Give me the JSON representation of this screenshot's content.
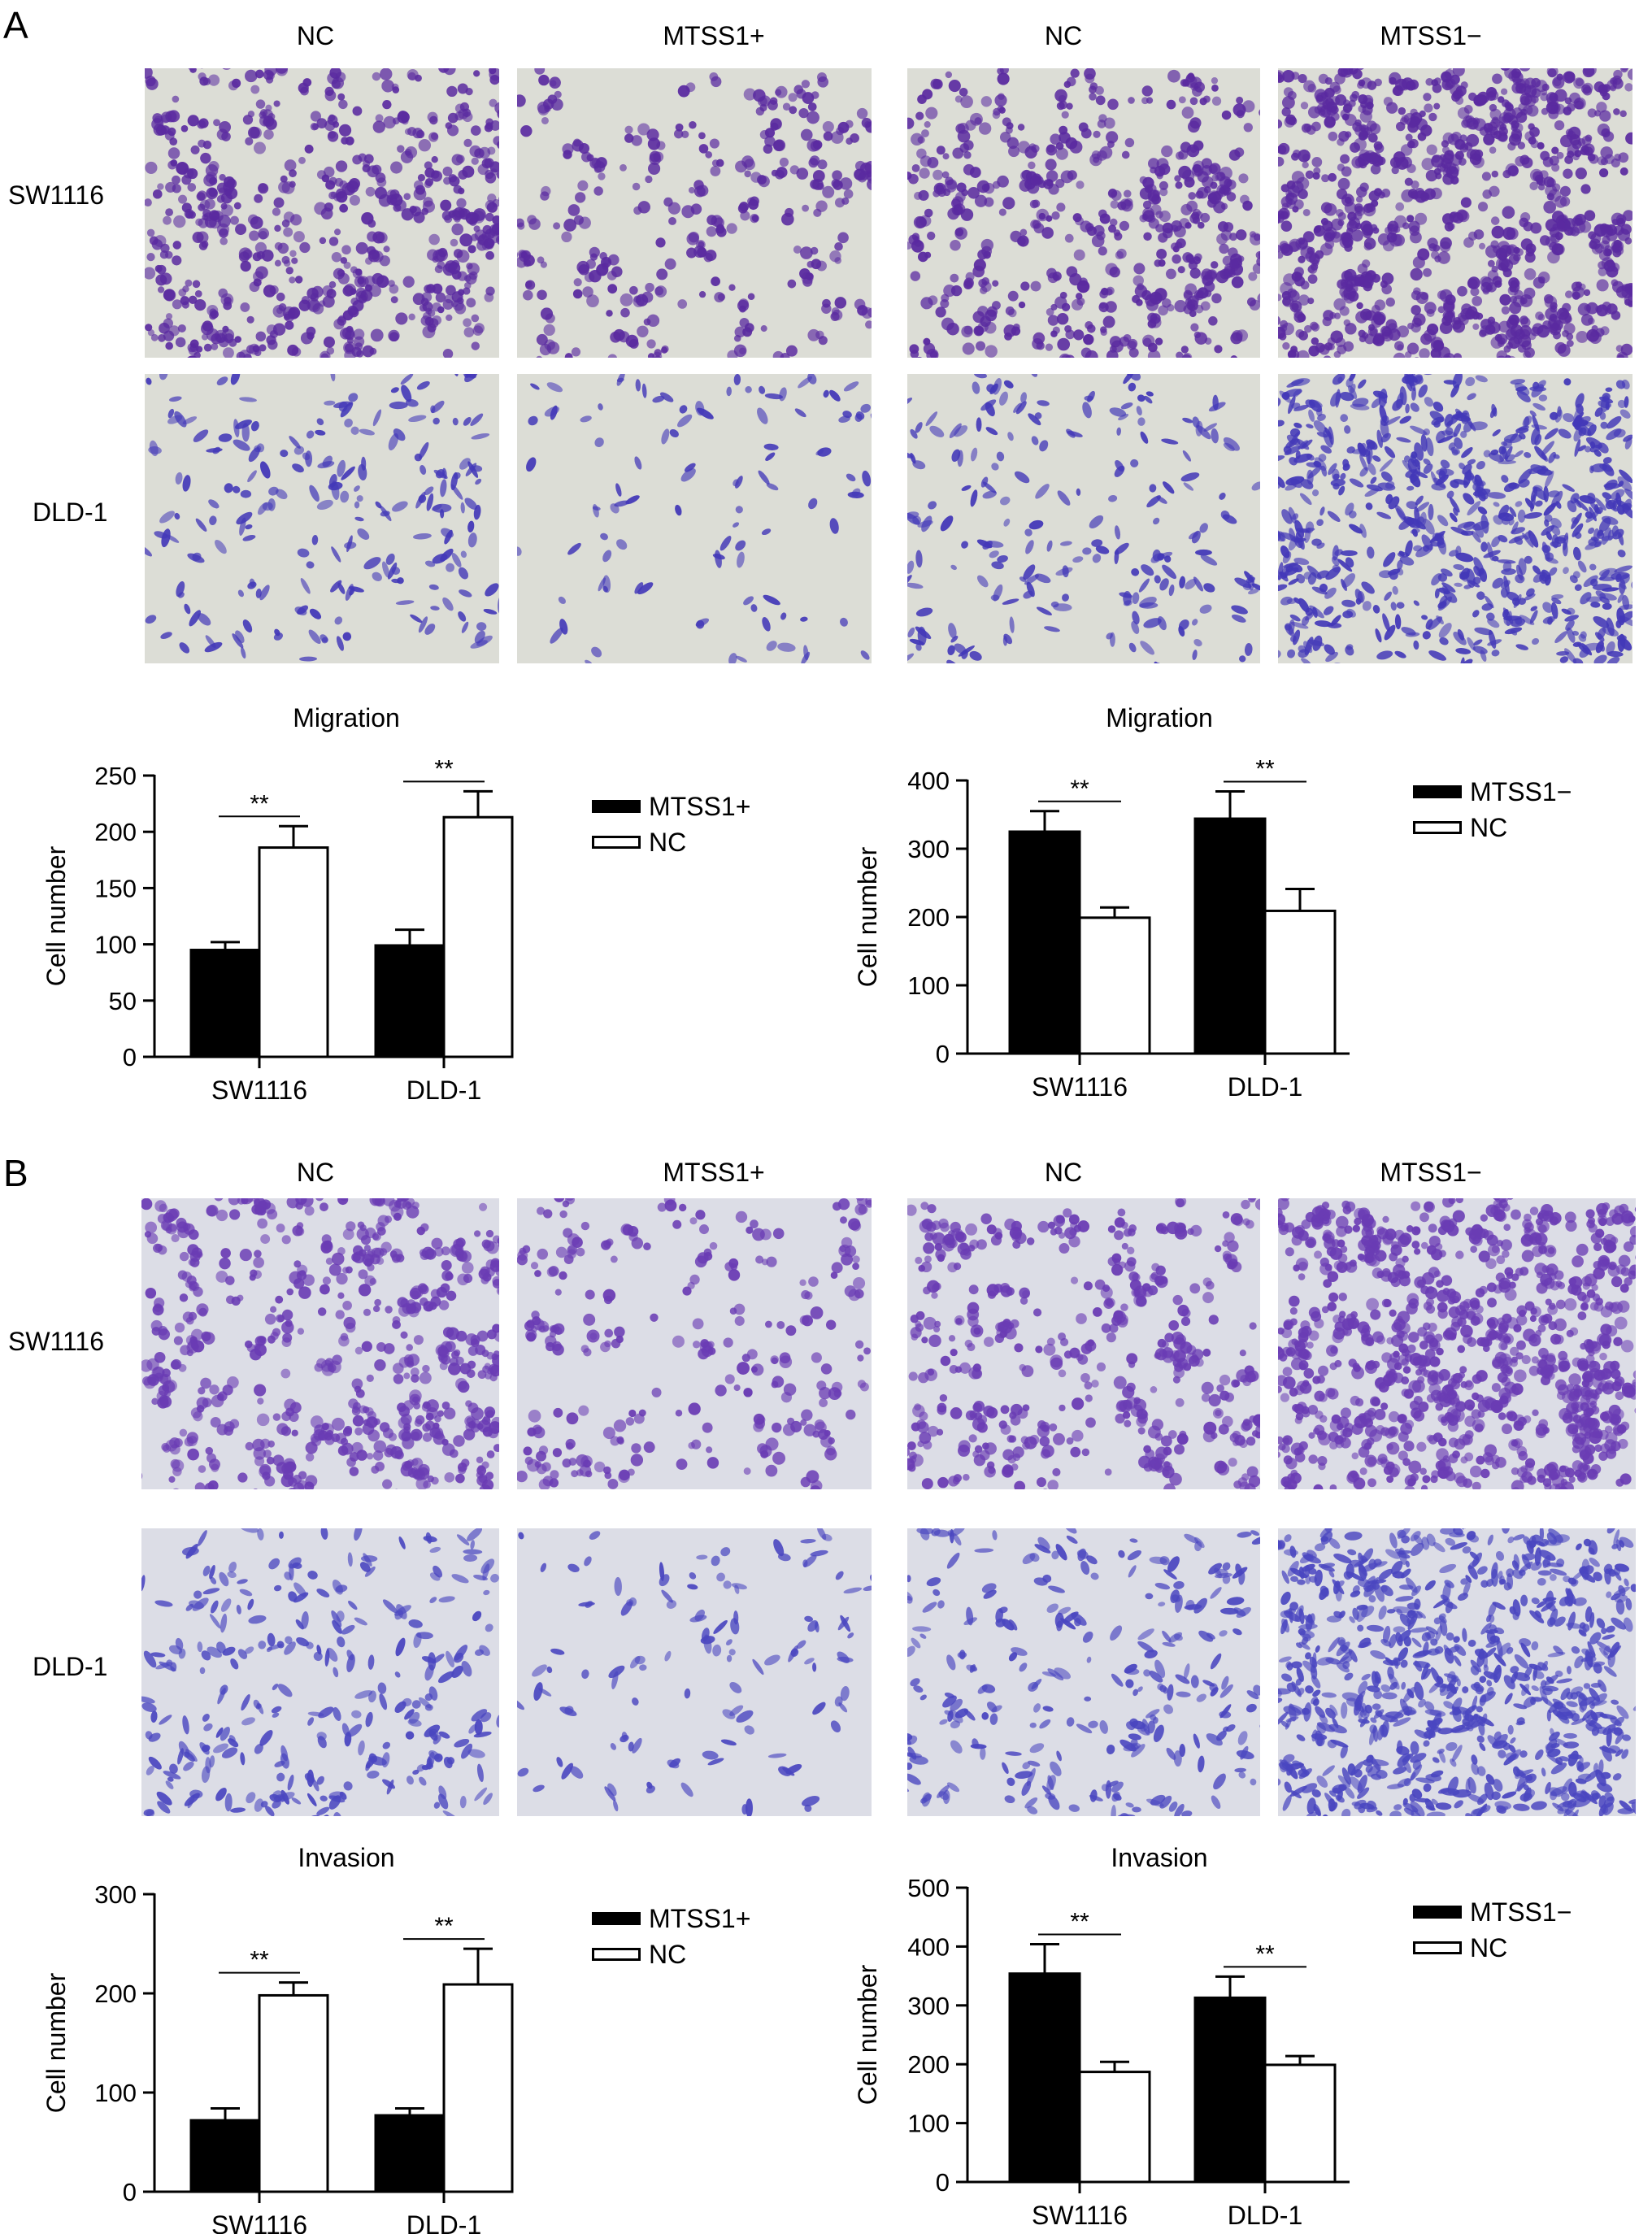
{
  "panels": [
    {
      "letter": "A",
      "columns": [
        "NC",
        "MTSS1+",
        "NC",
        "MTSS1−"
      ],
      "rows": [
        "SW1116",
        "DLD-1"
      ],
      "colors": {
        "sw1116_stain": "#5a2aa0",
        "dld1_stain": "#4338b8",
        "background": "#dcddd6"
      }
    },
    {
      "letter": "B",
      "columns": [
        "NC",
        "MTSS1+",
        "NC",
        "MTSS1−"
      ],
      "rows": [
        "SW1116",
        "DLD-1"
      ],
      "colors": {
        "sw1116_stain": "#6a3cb4",
        "dld1_stain": "#4a46c0",
        "background": "#dcdde6"
      }
    }
  ],
  "chart_data": [
    {
      "type": "bar",
      "title": "Migration",
      "ylabel": "Cell number",
      "categories": [
        "SW1116",
        "DLD-1"
      ],
      "ylim": [
        0,
        250
      ],
      "yticks": [
        0,
        50,
        100,
        150,
        200,
        250
      ],
      "series": [
        {
          "name": "MTSS1+",
          "fill": "#000000",
          "values": [
            95,
            99
          ],
          "errors": [
            7,
            14
          ]
        },
        {
          "name": "NC",
          "fill": "#ffffff",
          "values": [
            186,
            213
          ],
          "errors": [
            19,
            23
          ]
        }
      ],
      "significance": [
        "**",
        "**"
      ],
      "legend_position": "right"
    },
    {
      "type": "bar",
      "title": "Migration",
      "ylabel": "Cell number",
      "categories": [
        "SW1116",
        "DLD-1"
      ],
      "ylim": [
        0,
        400
      ],
      "yticks": [
        0,
        100,
        200,
        300,
        400
      ],
      "series": [
        {
          "name": "MTSS1−",
          "fill": "#000000",
          "values": [
            325,
            344
          ],
          "errors": [
            30,
            40
          ]
        },
        {
          "name": "NC",
          "fill": "#ffffff",
          "values": [
            199,
            209
          ],
          "errors": [
            15,
            32
          ]
        }
      ],
      "significance": [
        "**",
        "**"
      ],
      "legend_position": "right"
    },
    {
      "type": "bar",
      "title": "Invasion",
      "ylabel": "Cell number",
      "categories": [
        "SW1116",
        "DLD-1"
      ],
      "ylim": [
        0,
        300
      ],
      "yticks": [
        0,
        100,
        200,
        300
      ],
      "series": [
        {
          "name": "MTSS1+",
          "fill": "#000000",
          "values": [
            72,
            77
          ],
          "errors": [
            12,
            7
          ]
        },
        {
          "name": "NC",
          "fill": "#ffffff",
          "values": [
            198,
            209
          ],
          "errors": [
            13,
            36
          ]
        }
      ],
      "significance": [
        "**",
        "**"
      ],
      "legend_position": "right"
    },
    {
      "type": "bar",
      "title": "Invasion",
      "ylabel": "Cell number",
      "categories": [
        "SW1116",
        "DLD-1"
      ],
      "ylim": [
        0,
        500
      ],
      "yticks": [
        0,
        100,
        200,
        300,
        400,
        500
      ],
      "series": [
        {
          "name": "MTSS1−",
          "fill": "#000000",
          "values": [
            354,
            313
          ],
          "errors": [
            50,
            36
          ]
        },
        {
          "name": "NC",
          "fill": "#ffffff",
          "values": [
            187,
            199
          ],
          "errors": [
            17,
            15
          ]
        }
      ],
      "significance": [
        "**",
        "**"
      ],
      "legend_position": "right"
    }
  ]
}
